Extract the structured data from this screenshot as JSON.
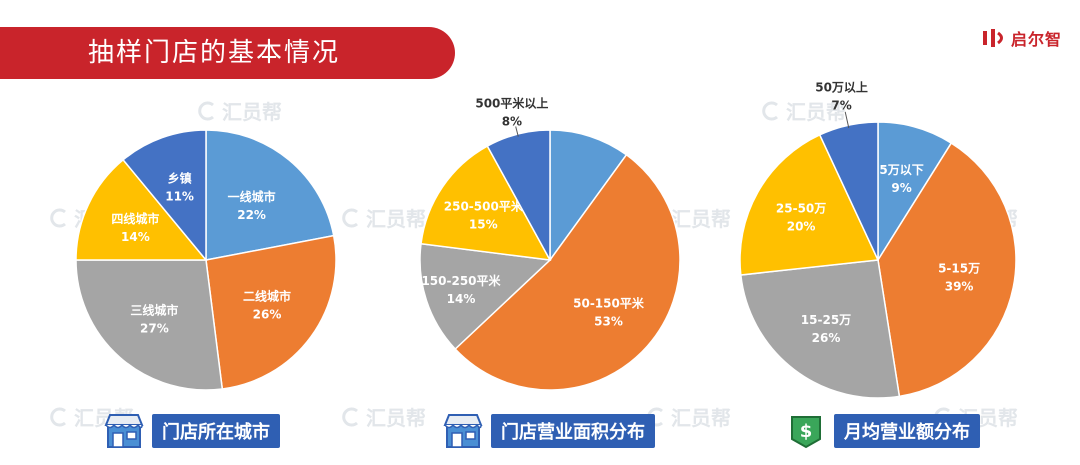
{
  "header": {
    "title": "抽样门店的基本情况"
  },
  "brand": {
    "name": "启尔智"
  },
  "watermark": {
    "text": "汇员帮"
  },
  "charts": [
    {
      "caption": "门店所在城市",
      "caption_icon": "storefront-icon"
    },
    {
      "caption": "门店营业面积分布",
      "caption_icon": "storefront-icon"
    },
    {
      "caption": "月均营业额分布",
      "caption_icon": "money-bill-icon"
    }
  ],
  "chart_data": [
    {
      "type": "pie",
      "title": "门店所在城市",
      "categories": [
        "一线城市",
        "二线城市",
        "三线城市",
        "四线城市",
        "乡镇"
      ],
      "values": [
        22,
        26,
        27,
        14,
        11
      ],
      "labels": [
        "22%",
        "26%",
        "27%",
        "14%",
        "11%"
      ],
      "colors": [
        "#5b9bd5",
        "#ed7d31",
        "#a5a5a5",
        "#ffc000",
        "#4472c4"
      ]
    },
    {
      "type": "pie",
      "title": "门店营业面积分布",
      "categories": [
        "",
        "50-150平米",
        "150-250平米",
        "250-500平米",
        "500平米以上"
      ],
      "values": [
        10,
        53,
        14,
        15,
        8
      ],
      "labels": [
        "",
        "53%",
        "14%",
        "15%",
        "8%"
      ],
      "colors": [
        "#5b9bd5",
        "#ed7d31",
        "#a5a5a5",
        "#ffc000",
        "#4472c4"
      ]
    },
    {
      "type": "pie",
      "title": "月均营业额分布",
      "categories": [
        "5万以下",
        "5-15万",
        "15-25万",
        "25-50万",
        "50万以上"
      ],
      "values": [
        9,
        39,
        26,
        20,
        7
      ],
      "labels": [
        "9%",
        "39%",
        "26%",
        "20%",
        "7%"
      ],
      "colors": [
        "#5b9bd5",
        "#ed7d31",
        "#a5a5a5",
        "#ffc000",
        "#4472c4"
      ]
    }
  ]
}
